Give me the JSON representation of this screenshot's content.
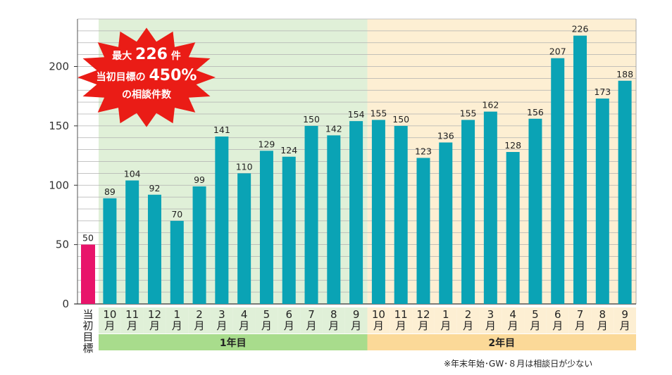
{
  "chart_data": {
    "type": "bar",
    "categories": [
      "当初目標",
      "10月",
      "11月",
      "12月",
      "1月",
      "2月",
      "3月",
      "4月",
      "5月",
      "6月",
      "7月",
      "8月",
      "9月",
      "10月",
      "11月",
      "12月",
      "1月",
      "2月",
      "3月",
      "4月",
      "5月",
      "6月",
      "7月",
      "8月",
      "9月"
    ],
    "values": [
      50,
      89,
      104,
      92,
      70,
      99,
      141,
      110,
      129,
      124,
      150,
      142,
      154,
      155,
      150,
      123,
      136,
      155,
      162,
      128,
      156,
      207,
      226,
      173,
      188
    ],
    "ylim": [
      0,
      240
    ],
    "yticks": [
      0,
      50,
      100,
      150,
      200
    ],
    "grid": true,
    "groups": [
      {
        "label": "1年目",
        "start": 1,
        "end": 12,
        "band_color": "#e0f0d8",
        "label_color": "#a8dc8c"
      },
      {
        "label": "2年目",
        "start": 13,
        "end": 24,
        "band_color": "#fdefd3",
        "label_color": "#fbd998"
      }
    ],
    "colors": {
      "bar": "#0aa3b5",
      "target_bar": "#e8146a",
      "grid": "#b0b0b0",
      "burst": "#ea1c16"
    }
  },
  "callout": {
    "lines": [
      [
        {
          "t": "最大 ",
          "big": false
        },
        {
          "t": "226",
          "big": true
        },
        {
          "t": " 件",
          "big": false
        }
      ],
      [
        {
          "t": "当初目標の ",
          "big": false
        },
        {
          "t": "450%",
          "big": true
        }
      ],
      [
        {
          "t": "の相談件数",
          "big": false
        }
      ]
    ]
  },
  "footnote": "※年末年始･GW･８月は相談日が少ない"
}
